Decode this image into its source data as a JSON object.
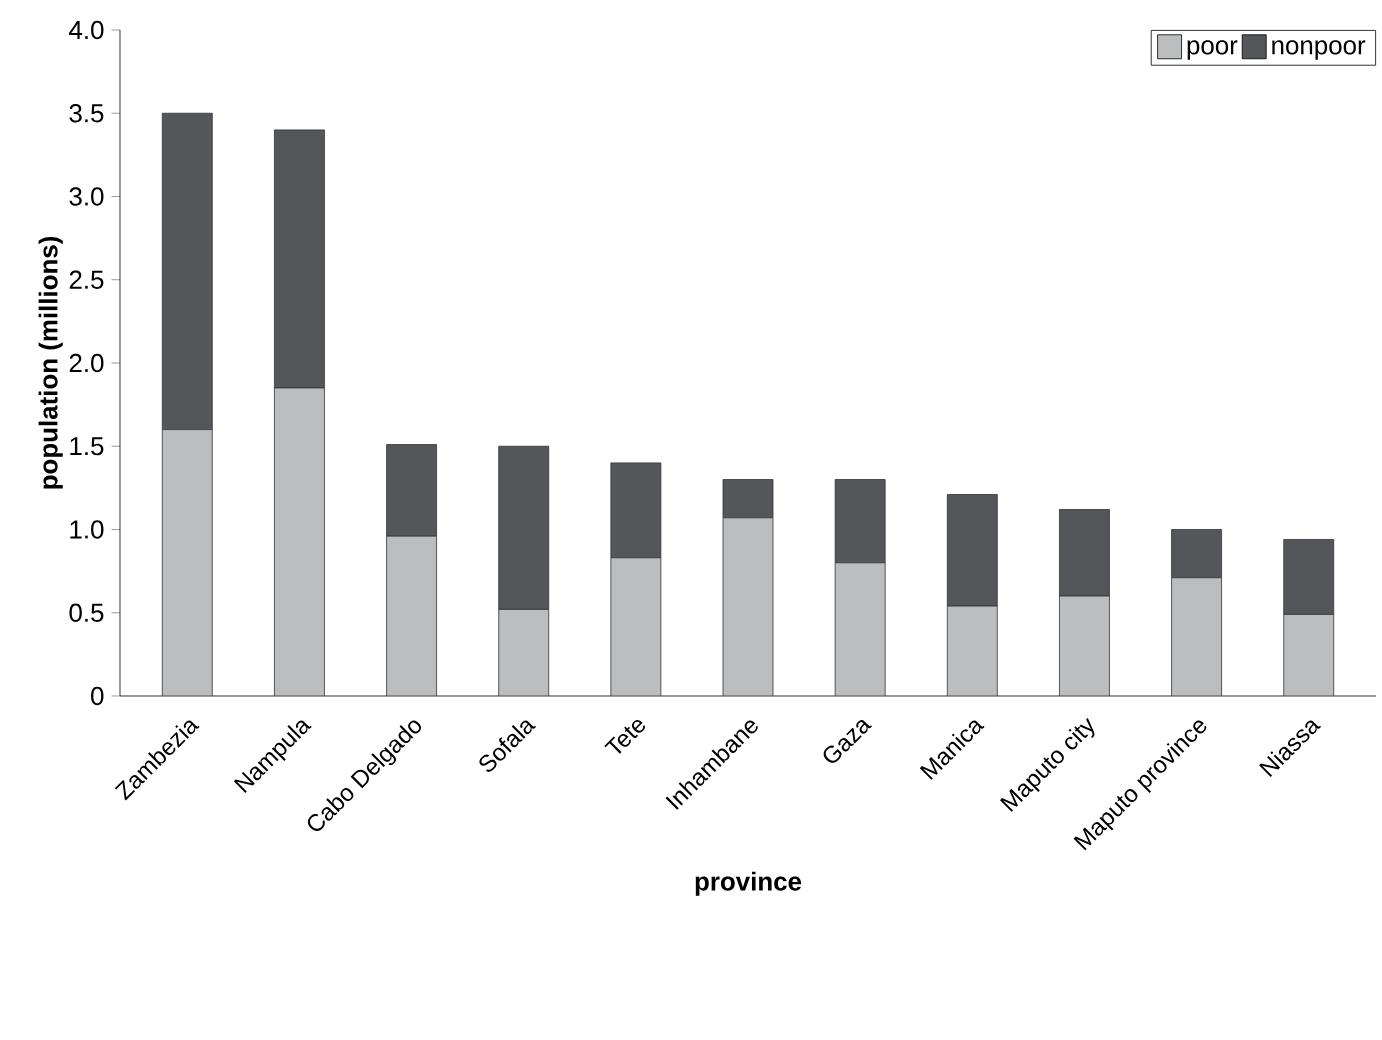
{
  "chart_data": {
    "type": "bar",
    "stacked": true,
    "xlabel": "province",
    "ylabel": "population (millions)",
    "categories": [
      "Zambezia",
      "Nampula",
      "Cabo Delgado",
      "Sofala",
      "Tete",
      "Inhambane",
      "Gaza",
      "Manica",
      "Maputo city",
      "Maputo province",
      "Niassa"
    ],
    "series": [
      {
        "name": "poor",
        "color": "#bcbdbf",
        "values": [
          1.6,
          1.85,
          0.96,
          0.52,
          0.83,
          1.07,
          0.8,
          0.54,
          0.6,
          0.71,
          0.49
        ]
      },
      {
        "name": "nonpoor",
        "color": "#55565a",
        "values": [
          1.9,
          1.55,
          0.55,
          0.98,
          0.57,
          0.23,
          0.5,
          0.67,
          0.52,
          0.29,
          0.45
        ]
      }
    ],
    "ylim": [
      0,
      4
    ],
    "yticks": [
      0,
      {
        "value": 0.5,
        "label": "0.5"
      },
      {
        "value": 1,
        "label": "1.0"
      },
      {
        "value": 1.5,
        "label": "1.5"
      },
      {
        "value": 2,
        "label": "2.0"
      },
      {
        "value": 2.5,
        "label": "2.5"
      },
      {
        "value": 3,
        "label": "3.0"
      },
      {
        "value": 3.5,
        "label": "3.5"
      },
      {
        "value": 4,
        "label": "4.0"
      }
    ],
    "grid": false,
    "legend": "top right"
  }
}
